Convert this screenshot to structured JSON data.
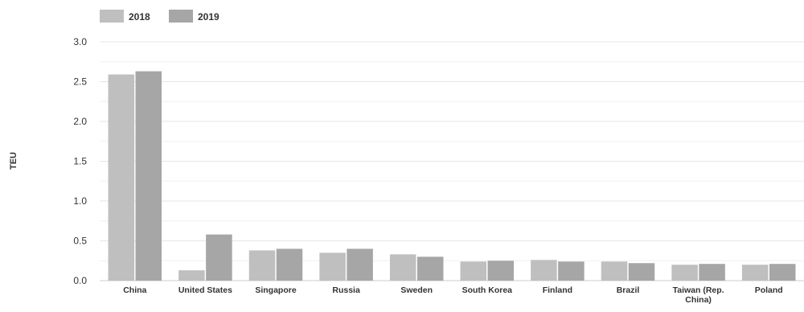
{
  "chart_data": {
    "type": "bar",
    "title": "",
    "xlabel": "",
    "ylabel": "TEU",
    "ylim": [
      0,
      3.0
    ],
    "yticks": [
      "0.0",
      "0.5",
      "1.0",
      "1.5",
      "2.0",
      "2.5",
      "3.0"
    ],
    "grid": true,
    "legend_position": "top-left",
    "categories": [
      "China",
      "United States",
      "Singapore",
      "Russia",
      "Sweden",
      "South Korea",
      "Finland",
      "Brazil",
      "Taiwan (Rep. China)",
      "Poland"
    ],
    "series": [
      {
        "name": "2018",
        "color": "#bfbfbf",
        "values": [
          2.59,
          0.13,
          0.38,
          0.35,
          0.33,
          0.24,
          0.26,
          0.24,
          0.2,
          0.2
        ]
      },
      {
        "name": "2019",
        "color": "#a6a6a6",
        "values": [
          2.63,
          0.58,
          0.4,
          0.4,
          0.3,
          0.25,
          0.24,
          0.22,
          0.21,
          0.21
        ]
      }
    ]
  }
}
